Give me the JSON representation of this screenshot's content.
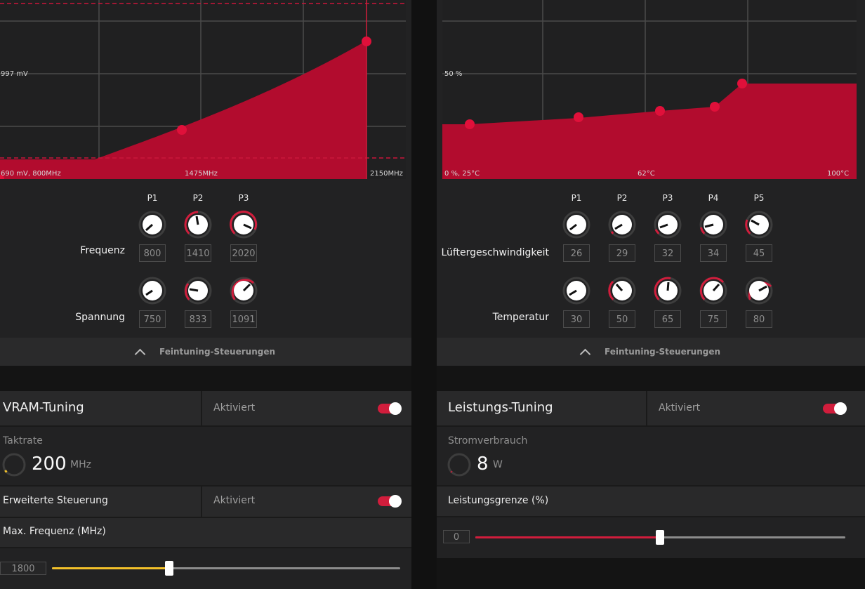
{
  "colors": {
    "accent": "#d11d3c",
    "vram_accent": "#f3c12a",
    "panel": "#222223",
    "header": "#29292a"
  },
  "gpu_tuning": {
    "curve_labels": {
      "left_bottom": "690 mV, 800MHz",
      "mid_bottom": "1475MHz",
      "right_bottom": "2150MHz",
      "y_mid": "997 mV"
    },
    "points": [
      "P1",
      "P2",
      "P3"
    ],
    "freq_label": "Frequenz",
    "freq_values": [
      "800",
      "1410",
      "2020"
    ],
    "volt_label": "Spannung",
    "volt_values": [
      "750",
      "833",
      "1091"
    ],
    "fine_tuning": "Feintuning-Steuerungen"
  },
  "fan_tuning": {
    "curve_labels": {
      "left_bottom": "0 %, 25°C",
      "mid_bottom": "62°C",
      "right_bottom": "100°C",
      "y_mid": "50 %"
    },
    "points": [
      "P1",
      "P2",
      "P3",
      "P4",
      "P5"
    ],
    "speed_label": "Lüftergeschwindigkeit",
    "speed_values": [
      "26",
      "29",
      "32",
      "34",
      "45"
    ],
    "temp_label": "Temperatur",
    "temp_values": [
      "30",
      "50",
      "65",
      "75",
      "80"
    ],
    "fine_tuning": "Feintuning-Steuerungen"
  },
  "vram": {
    "title": "VRAM-Tuning",
    "status": "Aktiviert",
    "clock_label": "Taktrate",
    "clock_value": "200",
    "clock_unit": "MHz",
    "advanced_label": "Erweiterte Steuerung",
    "advanced_status": "Aktiviert",
    "max_freq_label": "Max. Frequenz (MHz)",
    "max_freq_value": "1800",
    "max_freq_fraction": 0.34
  },
  "power": {
    "title": "Leistungs-Tuning",
    "status": "Aktiviert",
    "consumption_label": "Stromverbrauch",
    "consumption_value": "8",
    "consumption_unit": "W",
    "limit_label": "Leistungsgrenze (%)",
    "limit_value": "0",
    "limit_fraction": 0.5
  }
}
